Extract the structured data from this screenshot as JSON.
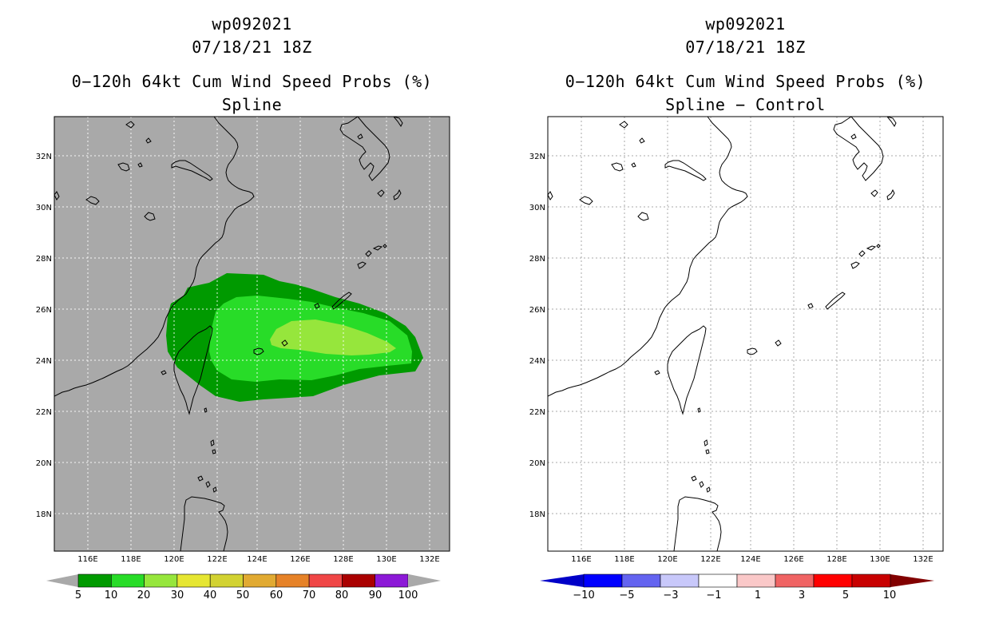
{
  "left_panel": {
    "storm_id": "wp092021",
    "datetime": "07/18/21 18Z",
    "product": "0−120h 64kt Cum Wind Speed Probs (%)",
    "subtitle": "Spline",
    "lat_labels": [
      "32N",
      "30N",
      "28N",
      "26N",
      "24N",
      "22N",
      "20N",
      "18N"
    ],
    "lon_labels": [
      "116E",
      "118E",
      "120E",
      "122E",
      "124E",
      "126E",
      "128E",
      "130E",
      "132E"
    ],
    "colorbar": {
      "labels": [
        "5",
        "10",
        "20",
        "30",
        "40",
        "50",
        "60",
        "70",
        "80",
        "90",
        "100"
      ],
      "colors": [
        "#009a00",
        "#28dc28",
        "#96e63c",
        "#e6e632",
        "#d2d232",
        "#e1aa32",
        "#e68228",
        "#f04646",
        "#aa0000",
        "#8c19d7"
      ]
    }
  },
  "right_panel": {
    "storm_id": "wp092021",
    "datetime": "07/18/21 18Z",
    "product": "0−120h 64kt Cum Wind Speed Probs (%)",
    "subtitle": "Spline − Control",
    "lat_labels": [
      "32N",
      "30N",
      "28N",
      "26N",
      "24N",
      "22N",
      "20N",
      "18N"
    ],
    "lon_labels": [
      "116E",
      "118E",
      "120E",
      "122E",
      "124E",
      "126E",
      "128E",
      "130E",
      "132E"
    ],
    "colorbar": {
      "labels": [
        "−10",
        "−5",
        "−3",
        "−1",
        "1",
        "3",
        "5",
        "10"
      ],
      "colors": [
        "#0000c8",
        "#0000ff",
        "#6464f0",
        "#c8c8fa",
        "#ffffff",
        "#fac8c8",
        "#f06464",
        "#ff0000",
        "#c80000",
        "#820000"
      ]
    }
  },
  "probability_field": {
    "contour_levels": [
      5,
      10,
      20
    ],
    "max_region": "20-30%",
    "fill_colors": [
      "#009a00",
      "#28dc28",
      "#96e63c"
    ],
    "background_color": "#a9a9a9"
  }
}
